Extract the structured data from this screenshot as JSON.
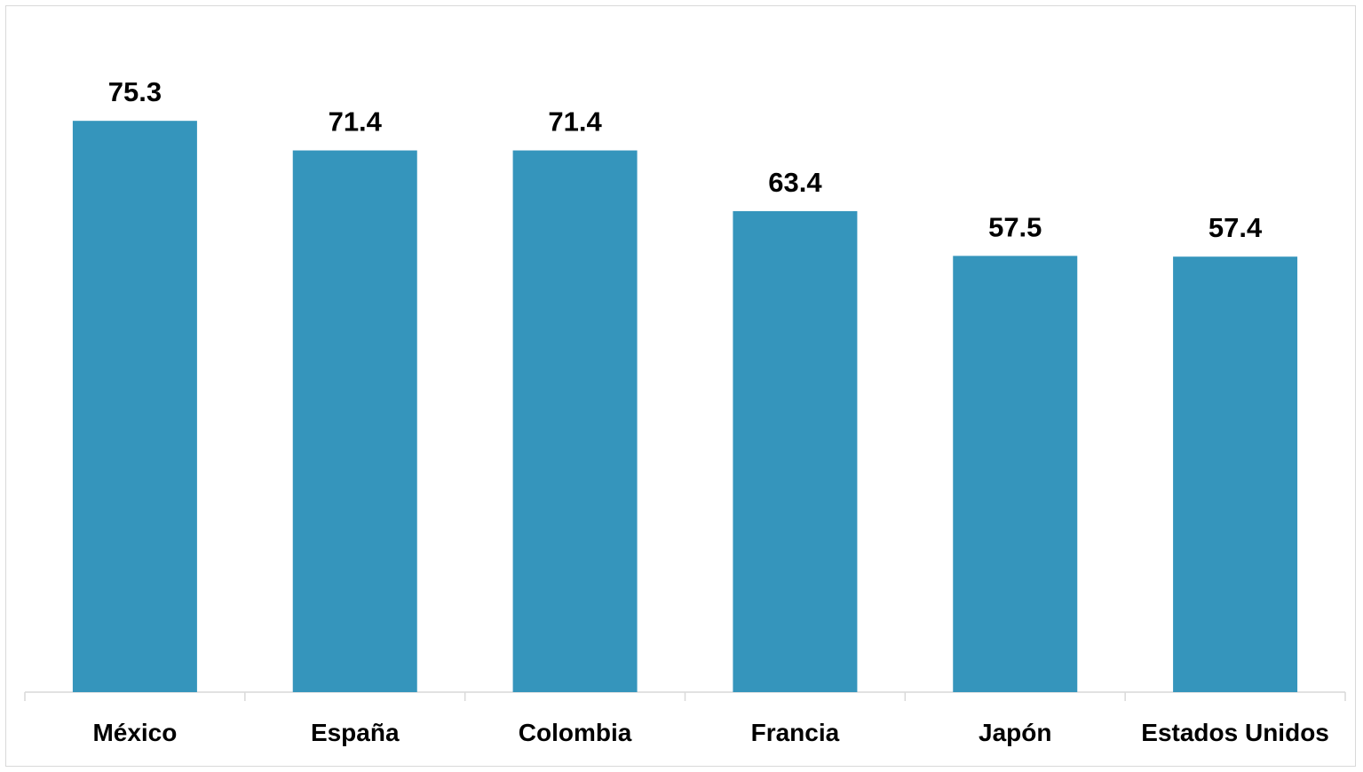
{
  "chart_data": {
    "type": "bar",
    "categories": [
      "México",
      "España",
      "Colombia",
      "Francia",
      "Japón",
      "Estados Unidos"
    ],
    "values": [
      75.3,
      71.4,
      71.4,
      63.4,
      57.5,
      57.4
    ],
    "data_labels": [
      "75.3",
      "71.4",
      "71.4",
      "63.4",
      "57.5",
      "57.4"
    ],
    "title": "",
    "xlabel": "",
    "ylabel": "",
    "ylim": [
      0,
      80
    ],
    "grid": false,
    "legend": "none",
    "bar_color": "#3595bc",
    "axis_color": "#d9d9d9"
  }
}
